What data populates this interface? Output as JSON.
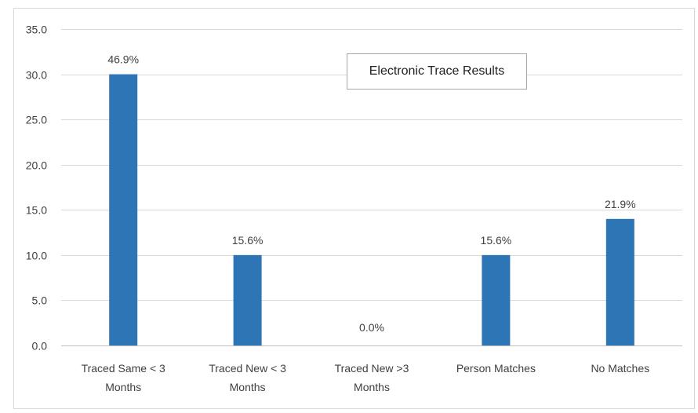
{
  "chart_data": {
    "type": "bar",
    "title": "Electronic Trace Results",
    "xlabel": "",
    "ylabel": "",
    "ylim": [
      0,
      35
    ],
    "y_ticks": [
      "0.0",
      "5.0",
      "10.0",
      "15.0",
      "20.0",
      "25.0",
      "30.0",
      "35.0"
    ],
    "categories": [
      [
        "Traced Same < 3",
        "Months"
      ],
      [
        "Traced New < 3",
        "Months"
      ],
      [
        "Traced New  >3",
        "Months"
      ],
      [
        "Person Matches"
      ],
      [
        "No Matches"
      ]
    ],
    "values": [
      30,
      10,
      0,
      10,
      14
    ],
    "data_labels": [
      "46.9%",
      "15.6%",
      "0.0%",
      "15.6%",
      "21.9%"
    ],
    "bar_color": "#2e75b6",
    "grid": true,
    "legend": "none"
  }
}
